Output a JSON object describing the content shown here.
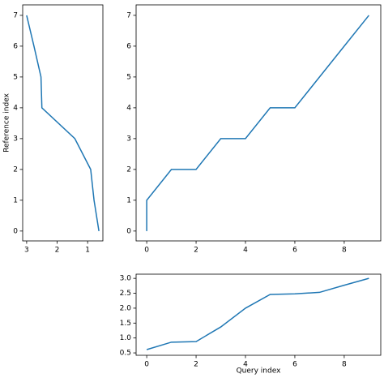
{
  "chart_data": [
    {
      "type": "line",
      "ylabel": "Reference index",
      "x": [
        0.63,
        0.79,
        0.9,
        1.42,
        2.5,
        2.53,
        2.76,
        3.0
      ],
      "series": [
        {
          "color": "#1f77b4",
          "values": [
            0,
            1,
            2,
            3,
            4,
            5,
            6,
            7
          ]
        }
      ],
      "xlim": [
        3.13,
        0.5
      ],
      "ylim": [
        -0.32,
        7.34
      ],
      "xticks": [
        3,
        2,
        1
      ],
      "yticks": [
        0,
        1,
        2,
        3,
        4,
        5,
        6,
        7
      ]
    },
    {
      "type": "line",
      "x": [
        0,
        0,
        1,
        2,
        3,
        4,
        5,
        6,
        7,
        8,
        9
      ],
      "series": [
        {
          "color": "#1f77b4",
          "values": [
            0,
            1,
            2,
            2,
            3,
            3,
            4,
            4,
            5,
            6,
            7
          ]
        }
      ],
      "xlim": [
        -0.43,
        9.48
      ],
      "ylim": [
        -0.32,
        7.34
      ],
      "xticks": [
        0,
        2,
        4,
        6,
        8
      ],
      "yticks": [
        0,
        1,
        2,
        3,
        4,
        5,
        6,
        7
      ]
    },
    {
      "type": "line",
      "xlabel": "Query index",
      "x": [
        0,
        1,
        2,
        3,
        4,
        5,
        6,
        7,
        8,
        9
      ],
      "series": [
        {
          "color": "#1f77b4",
          "values": [
            0.61,
            0.86,
            0.88,
            1.37,
            2.0,
            2.46,
            2.48,
            2.53,
            2.77,
            3.0
          ]
        }
      ],
      "xlim": [
        -0.43,
        9.48
      ],
      "ylim": [
        0.42,
        3.14
      ],
      "xticks": [
        0,
        2,
        4,
        6,
        8
      ],
      "yticks": [
        0.5,
        {
          "value": 1.0,
          "label": "1.0"
        },
        1.5,
        {
          "value": 2.0,
          "label": "2.0"
        },
        2.5,
        {
          "value": 3.0,
          "label": "3.0"
        }
      ]
    }
  ]
}
